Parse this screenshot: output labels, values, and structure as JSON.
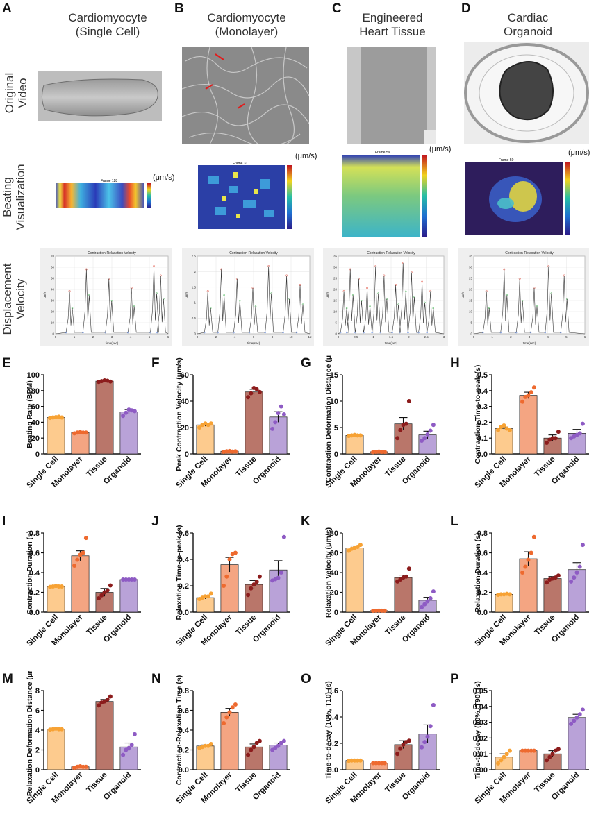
{
  "panel_letters": {
    "A": "A",
    "B": "B",
    "C": "C",
    "D": "D",
    "E": "E",
    "F": "F",
    "G": "G",
    "H": "H",
    "I": "I",
    "J": "J",
    "K": "K",
    "L": "L",
    "M": "M",
    "N": "N",
    "O": "O",
    "P": "P"
  },
  "columns": [
    {
      "line1": "Cardiomyocyte",
      "line2": "(Single Cell)"
    },
    {
      "line1": "Cardiomyocyte",
      "line2": "(Monolayer)"
    },
    {
      "line1": "Engineered",
      "line2": "Heart Tissue"
    },
    {
      "line1": "Cardiac",
      "line2": "Organoid"
    }
  ],
  "rows": {
    "original": {
      "line1": "Original",
      "line2": "Video"
    },
    "beating": {
      "line1": "Beating",
      "line2": "Visualization"
    },
    "displacement": {
      "line1": "Displacement",
      "line2": "Velocity"
    }
  },
  "heatmaps": [
    {
      "frame": "Frame 128",
      "unit": "(μm/s)",
      "ticks": [
        "120",
        "100",
        "80",
        "60",
        "40",
        "20"
      ]
    },
    {
      "frame": "Frame 31",
      "unit": "(μm/s)",
      "ticks": [
        "20",
        "15",
        "10",
        "5",
        "0"
      ]
    },
    {
      "frame": "Frame 59",
      "unit": "(μm/s)",
      "ticks": [
        "160",
        "140",
        "120",
        "100",
        "80",
        "60",
        "40",
        "20",
        "0"
      ]
    },
    {
      "frame": "Frame 50",
      "unit": "(μm/s)",
      "ticks": [
        "300",
        "250",
        "200",
        "150",
        "100",
        "50",
        "0"
      ]
    }
  ],
  "velocity_plots": [
    {
      "title": "Contraction-Relaxation Velocity",
      "ylabel": "μm/s",
      "xlabel": "time(sec)",
      "yticks": [
        "70",
        "60",
        "50",
        "40",
        "30",
        "20",
        "10",
        "0"
      ],
      "xticks": [
        "0",
        "1",
        "2",
        "3",
        "4",
        "5",
        "6"
      ]
    },
    {
      "title": "Contraction-Relaxation Velocity",
      "ylabel": "μm/s",
      "xlabel": "time(sec)",
      "yticks": [
        "2.5",
        "2",
        "1.5",
        "1",
        "0.5",
        "0"
      ],
      "xticks": [
        "0",
        "2",
        "4",
        "6",
        "8",
        "10",
        "12"
      ]
    },
    {
      "title": "Contraction-Relaxation Velocity",
      "ylabel": "μm/s",
      "xlabel": "time(sec)",
      "yticks": [
        "35",
        "30",
        "25",
        "20",
        "15",
        "10",
        "5",
        "0"
      ],
      "xticks": [
        "0",
        "0.5",
        "1",
        "1.5",
        "2",
        "2.5",
        "3"
      ]
    },
    {
      "title": "Contraction-Relaxation Velocity",
      "ylabel": "μm/s",
      "xlabel": "time(sec)",
      "yticks": [
        "35",
        "30",
        "25",
        "20",
        "15",
        "10",
        "5",
        "0"
      ],
      "xticks": [
        "0",
        "1",
        "2",
        "3",
        "4",
        "5",
        "6"
      ]
    }
  ],
  "colors": {
    "single": "#FDCB8E",
    "monolayer": "#F4A582",
    "tissue": "#B9766A",
    "organoid": "#B9A2D8",
    "single_dot": "#F7A234",
    "monolayer_dot": "#EE6A2F",
    "tissue_dot": "#8C1C1C",
    "organoid_dot": "#8E5BC4"
  },
  "chart_data": [
    {
      "id": "E",
      "type": "bar",
      "categories": [
        "Single Cell",
        "Monolayer",
        "Tissue",
        "Organoid"
      ],
      "ylabel": "Beating Rate (BPM)",
      "ylim": [
        0,
        100
      ],
      "yticks": [
        "0",
        "20",
        "40",
        "60",
        "80",
        "100"
      ],
      "values": [
        46,
        27,
        92,
        53
      ],
      "errors": [
        0.6,
        0.6,
        0.8,
        3
      ],
      "points": [
        [
          45.5,
          46,
          46.5,
          47,
          46
        ],
        [
          26,
          27,
          27.5,
          27,
          27
        ],
        [
          91,
          92,
          93,
          92.5,
          91.5
        ],
        [
          48,
          52,
          56,
          55,
          54
        ]
      ]
    },
    {
      "id": "F",
      "type": "bar",
      "categories": [
        "Single Cell",
        "Monolayer",
        "Tissue",
        "Organoid"
      ],
      "ylabel": "Peak Contraction Velocity (μm/s)",
      "ylim": [
        0,
        60
      ],
      "yticks": [
        "0",
        "20",
        "40",
        "60"
      ],
      "values": [
        22,
        2,
        47,
        28
      ],
      "errors": [
        1,
        0.3,
        2,
        4
      ],
      "points": [
        [
          20,
          22,
          23,
          22,
          23
        ],
        [
          1.6,
          2,
          2.2,
          1.8,
          2
        ],
        [
          43,
          46,
          50,
          49,
          47
        ],
        [
          19,
          24,
          31,
          36,
          30
        ]
      ]
    },
    {
      "id": "G",
      "type": "bar",
      "categories": [
        "Single Cell",
        "Monolayer",
        "Tissue",
        "Organoid"
      ],
      "ylabel": "Contraction Deformation Distance (μm)",
      "ylim": [
        0,
        15
      ],
      "yticks": [
        "0",
        "5",
        "10",
        "15"
      ],
      "values": [
        3.5,
        0.4,
        5.7,
        3.6
      ],
      "errors": [
        0.1,
        0.05,
        1.2,
        0.7
      ],
      "points": [
        [
          3.4,
          3.5,
          3.6,
          3.5,
          3.5
        ],
        [
          0.35,
          0.4,
          0.45,
          0.4,
          0.4
        ],
        [
          3,
          4.5,
          5.5,
          5.7,
          10
        ],
        [
          2.5,
          3,
          3.7,
          4.4,
          5.5
        ]
      ]
    },
    {
      "id": "H",
      "type": "bar",
      "categories": [
        "Single Cell",
        "Monolayer",
        "Tissue",
        "Organoid"
      ],
      "ylabel": "Contraction Time-to-peak (s)",
      "ylim": [
        0,
        0.5
      ],
      "yticks": [
        "0.0",
        "0.1",
        "0.2",
        "0.3",
        "0.4",
        "0.5"
      ],
      "values": [
        0.16,
        0.37,
        0.1,
        0.13
      ],
      "errors": [
        0.01,
        0.02,
        0.02,
        0.025
      ],
      "points": [
        [
          0.15,
          0.17,
          0.18,
          0.16,
          0.15
        ],
        [
          0.33,
          0.36,
          0.37,
          0.39,
          0.42
        ],
        [
          0.07,
          0.09,
          0.1,
          0.1,
          0.14
        ],
        [
          0.1,
          0.11,
          0.12,
          0.13,
          0.19
        ]
      ]
    },
    {
      "id": "I",
      "type": "bar",
      "categories": [
        "Single Cell",
        "Monolayer",
        "Tissue",
        "Organoid"
      ],
      "ylabel": "Contraction Duration (s)",
      "ylim": [
        0,
        0.8
      ],
      "yticks": [
        "0.0",
        "0.2",
        "0.4",
        "0.6",
        "0.8"
      ],
      "values": [
        0.26,
        0.57,
        0.2,
        0.33
      ],
      "errors": [
        0.005,
        0.05,
        0.04,
        0.003
      ],
      "points": [
        [
          0.255,
          0.26,
          0.265,
          0.26,
          0.26
        ],
        [
          0.47,
          0.53,
          0.58,
          0.6,
          0.75
        ],
        [
          0.14,
          0.17,
          0.2,
          0.22,
          0.27
        ],
        [
          0.33,
          0.33,
          0.33,
          0.33,
          0.33
        ]
      ]
    },
    {
      "id": "J",
      "type": "bar",
      "categories": [
        "Single Cell",
        "Monolayer",
        "Tissue",
        "Organoid"
      ],
      "ylabel": "Relaxation Time-to-peak (s)",
      "ylim": [
        0,
        0.6
      ],
      "yticks": [
        "0.0",
        "0.2",
        "0.4",
        "0.6"
      ],
      "values": [
        0.11,
        0.36,
        0.21,
        0.32
      ],
      "errors": [
        0.01,
        0.055,
        0.03,
        0.07
      ],
      "points": [
        [
          0.1,
          0.11,
          0.12,
          0.12,
          0.14
        ],
        [
          0.2,
          0.27,
          0.4,
          0.44,
          0.45
        ],
        [
          0.13,
          0.18,
          0.21,
          0.23,
          0.27
        ],
        [
          0.24,
          0.25,
          0.26,
          0.3,
          0.57
        ]
      ]
    },
    {
      "id": "K",
      "type": "bar",
      "categories": [
        "Single Cell",
        "Monolayer",
        "Tissue",
        "Organoid"
      ],
      "ylabel": "Relaxation Velocity (μm/s)",
      "ylim": [
        0,
        80
      ],
      "yticks": [
        "0",
        "20",
        "40",
        "60",
        "80"
      ],
      "values": [
        65,
        1.5,
        35,
        12
      ],
      "errors": [
        2,
        0.1,
        2.5,
        3
      ],
      "points": [
        [
          62,
          64,
          65,
          66,
          68
        ],
        [
          1.4,
          1.5,
          1.6,
          1.5,
          1.5
        ],
        [
          31,
          33,
          35,
          36,
          44
        ],
        [
          5,
          8,
          11,
          14,
          21
        ]
      ]
    },
    {
      "id": "L",
      "type": "bar",
      "categories": [
        "Single Cell",
        "Monolayer",
        "Tissue",
        "Organoid"
      ],
      "ylabel": "Relaxation Duration (s)",
      "ylim": [
        0,
        0.8
      ],
      "yticks": [
        "0.0",
        "0.2",
        "0.4",
        "0.6",
        "0.8"
      ],
      "values": [
        0.18,
        0.54,
        0.34,
        0.43
      ],
      "errors": [
        0.005,
        0.07,
        0.02,
        0.07
      ],
      "points": [
        [
          0.175,
          0.18,
          0.18,
          0.185,
          0.18
        ],
        [
          0.4,
          0.46,
          0.53,
          0.6,
          0.76
        ],
        [
          0.3,
          0.33,
          0.34,
          0.35,
          0.37
        ],
        [
          0.31,
          0.35,
          0.4,
          0.46,
          0.68
        ]
      ]
    },
    {
      "id": "M",
      "type": "bar",
      "categories": [
        "Single Cell",
        "Monolayer",
        "Tissue",
        "Organoid"
      ],
      "ylabel": "Relaxation Deformation Distance (μm)",
      "ylim": [
        0,
        8
      ],
      "yticks": [
        "0",
        "2",
        "4",
        "6",
        "8"
      ],
      "values": [
        4.1,
        0.3,
        6.9,
        2.3
      ],
      "errors": [
        0.05,
        0.05,
        0.2,
        0.4
      ],
      "points": [
        [
          4.05,
          4.1,
          4.15,
          4.1,
          4.1
        ],
        [
          0.2,
          0.3,
          0.35,
          0.3,
          0.3
        ],
        [
          6.5,
          6.8,
          6.9,
          7.1,
          7.4
        ],
        [
          1.5,
          2,
          2.2,
          2.5,
          3.6
        ]
      ]
    },
    {
      "id": "N",
      "type": "bar",
      "categories": [
        "Single Cell",
        "Monolayer",
        "Tissue",
        "Organoid"
      ],
      "ylabel": "Contraction-Relaxation Time (s)",
      "ylim": [
        0,
        0.8
      ],
      "yticks": [
        "0.0",
        "0.2",
        "0.4",
        "0.6",
        "0.8"
      ],
      "values": [
        0.24,
        0.58,
        0.23,
        0.25
      ],
      "errors": [
        0.01,
        0.04,
        0.03,
        0.02
      ],
      "points": [
        [
          0.22,
          0.23,
          0.24,
          0.24,
          0.26
        ],
        [
          0.47,
          0.53,
          0.58,
          0.63,
          0.66
        ],
        [
          0.15,
          0.2,
          0.23,
          0.27,
          0.29
        ],
        [
          0.2,
          0.22,
          0.24,
          0.27,
          0.29
        ]
      ]
    },
    {
      "id": "O",
      "type": "bar",
      "categories": [
        "Single Cell",
        "Monolayer",
        "Tissue",
        "Organoid"
      ],
      "ylabel": "Time-to-decay (10%, T10) (s)",
      "ylim": [
        0,
        0.6
      ],
      "yticks": [
        "0.0",
        "0.2",
        "0.4",
        "0.6"
      ],
      "values": [
        0.07,
        0.05,
        0.19,
        0.27
      ],
      "errors": [
        0.002,
        0.002,
        0.03,
        0.07
      ],
      "points": [
        [
          0.067,
          0.07,
          0.07,
          0.07,
          0.07
        ],
        [
          0.05,
          0.05,
          0.05,
          0.05,
          0.05
        ],
        [
          0.12,
          0.16,
          0.19,
          0.21,
          0.22
        ],
        [
          0.17,
          0.21,
          0.25,
          0.33,
          0.49
        ]
      ]
    },
    {
      "id": "P",
      "type": "bar",
      "categories": [
        "Single Cell",
        "Monolayer",
        "Tissue",
        "Organoid"
      ],
      "ylabel": "Time-to-decay (90%, T90) (s)",
      "ylim": [
        0,
        0.05
      ],
      "yticks": [
        "0.00",
        "0.01",
        "0.02",
        "0.03",
        "0.04",
        "0.05"
      ],
      "values": [
        0.008,
        0.012,
        0.01,
        0.033
      ],
      "errors": [
        0.002,
        0.0002,
        0.002,
        0.002
      ],
      "points": [
        [
          0.004,
          0.006,
          0.008,
          0.01,
          0.012
        ],
        [
          0.012,
          0.012,
          0.012,
          0.012,
          0.012
        ],
        [
          0.006,
          0.008,
          0.01,
          0.012,
          0.013
        ],
        [
          0.029,
          0.031,
          0.033,
          0.035,
          0.038
        ]
      ]
    }
  ]
}
